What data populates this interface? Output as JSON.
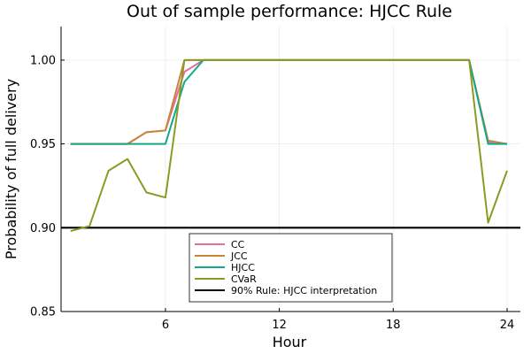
{
  "chart_data": {
    "type": "line",
    "title": "Out of sample performance: HJCC Rule",
    "xlabel": "Hour",
    "ylabel": "Probability of full delivery",
    "xlim": [
      0.5,
      24.7
    ],
    "ylim": [
      0.85,
      1.02
    ],
    "xticks": [
      6,
      12,
      18,
      24
    ],
    "yticks": [
      0.85,
      0.9,
      0.95,
      1.0
    ],
    "ytick_labels": [
      "0.85",
      "0.90",
      "0.95",
      "1.00"
    ],
    "grid": true,
    "legend_position": "bottom-center",
    "x": [
      1,
      2,
      3,
      4,
      5,
      6,
      7,
      8,
      9,
      10,
      11,
      12,
      13,
      14,
      15,
      16,
      17,
      18,
      19,
      20,
      21,
      22,
      23,
      24
    ],
    "series": [
      {
        "name": "CC",
        "color": "#e26f9d",
        "values": [
          0.95,
          0.95,
          0.95,
          0.95,
          0.957,
          0.958,
          0.993,
          1.0,
          1.0,
          1.0,
          1.0,
          1.0,
          1.0,
          1.0,
          1.0,
          1.0,
          1.0,
          1.0,
          1.0,
          1.0,
          1.0,
          1.0,
          0.951,
          0.95
        ]
      },
      {
        "name": "JCC",
        "color": "#c98437",
        "values": [
          0.95,
          0.95,
          0.95,
          0.95,
          0.957,
          0.958,
          1.0,
          1.0,
          1.0,
          1.0,
          1.0,
          1.0,
          1.0,
          1.0,
          1.0,
          1.0,
          1.0,
          1.0,
          1.0,
          1.0,
          1.0,
          1.0,
          0.952,
          0.95
        ]
      },
      {
        "name": "HJCC",
        "color": "#13a88a",
        "values": [
          0.95,
          0.95,
          0.95,
          0.95,
          0.95,
          0.95,
          0.987,
          1.0,
          1.0,
          1.0,
          1.0,
          1.0,
          1.0,
          1.0,
          1.0,
          1.0,
          1.0,
          1.0,
          1.0,
          1.0,
          1.0,
          1.0,
          0.95,
          0.95
        ]
      },
      {
        "name": "CVaR",
        "color": "#8c9a24",
        "values": [
          0.898,
          0.901,
          0.934,
          0.941,
          0.921,
          0.918,
          1.0,
          1.0,
          1.0,
          1.0,
          1.0,
          1.0,
          1.0,
          1.0,
          1.0,
          1.0,
          1.0,
          1.0,
          1.0,
          1.0,
          1.0,
          1.0,
          0.903,
          0.934
        ]
      }
    ],
    "hlines": [
      {
        "name": "90% Rule: HJCC interpretation",
        "y": 0.9,
        "color": "#000000"
      }
    ]
  }
}
